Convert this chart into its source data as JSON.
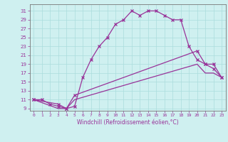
{
  "title": "",
  "xlabel": "Windchill (Refroidissement éolien,°C)",
  "bg_color": "#cff0f0",
  "line_color": "#993399",
  "grid_color": "#aadddd",
  "xlim": [
    -0.5,
    23.5
  ],
  "ylim": [
    8.5,
    32.5
  ],
  "xticks": [
    0,
    1,
    2,
    3,
    4,
    5,
    6,
    7,
    8,
    9,
    10,
    11,
    12,
    13,
    14,
    15,
    16,
    17,
    18,
    19,
    20,
    21,
    22,
    23
  ],
  "yticks": [
    9,
    11,
    13,
    15,
    17,
    19,
    21,
    23,
    25,
    27,
    29,
    31
  ],
  "line1_x": [
    0,
    1,
    2,
    3,
    4,
    5,
    6,
    7,
    8,
    9,
    10,
    11,
    12,
    13,
    14,
    15,
    16,
    17,
    18,
    19,
    20,
    21,
    22,
    23
  ],
  "line1_y": [
    11,
    11,
    10,
    9.5,
    9,
    9.5,
    16,
    20,
    23,
    25,
    28,
    29,
    31,
    30,
    31,
    31,
    30,
    29,
    29,
    23,
    20,
    19,
    18,
    16
  ],
  "line2_x": [
    0,
    3,
    4,
    5,
    20,
    21,
    22,
    23
  ],
  "line2_y": [
    11,
    10,
    9,
    12,
    22,
    19,
    19,
    16
  ],
  "line3_x": [
    0,
    3,
    4,
    5,
    20,
    21,
    22,
    23
  ],
  "line3_y": [
    11,
    9,
    9,
    11,
    19,
    17,
    17,
    16
  ],
  "tick_fontsize": 5.0,
  "xlabel_fontsize": 5.5
}
